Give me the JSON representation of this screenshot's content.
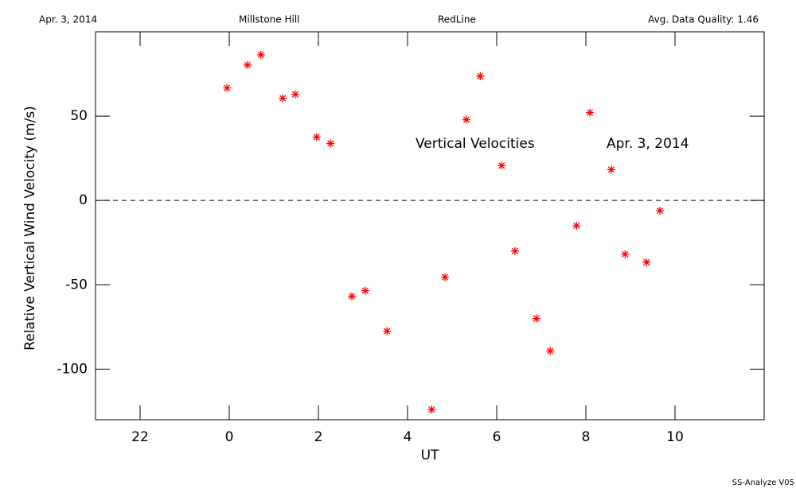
{
  "header": {
    "date": "Apr. 3, 2014",
    "site": "Millstone Hill",
    "instrument": "RedLine",
    "quality": "Avg. Data Quality: 1.46"
  },
  "footer": "SS-Analyze V05",
  "chart_data": {
    "type": "scatter",
    "annotations": [
      "Vertical Velocities",
      "Apr. 3, 2014"
    ],
    "x_label": "UT",
    "y_label": "Relative Vertical Wind Velocity (m/s)",
    "color": "#ff0000",
    "reference_line": 0,
    "xlim": [
      -3,
      12
    ],
    "ylim": [
      -130,
      100
    ],
    "xticks": [
      {
        "value": -2,
        "label": "22"
      },
      0,
      2,
      4,
      6,
      8,
      10
    ],
    "yticks": [
      -100,
      -50,
      0,
      50
    ],
    "x": [
      -0.05,
      0.41,
      0.71,
      1.2,
      1.48,
      1.96,
      2.27,
      2.75,
      3.05,
      3.54,
      4.54,
      4.84,
      5.32,
      5.63,
      6.11,
      6.41,
      6.89,
      7.2,
      7.79,
      8.09,
      8.57,
      8.88,
      9.36,
      9.66
    ],
    "values": [
      66.7,
      80.3,
      86.4,
      60.6,
      62.9,
      37.6,
      33.8,
      -56.8,
      -53.5,
      -77.5,
      -124,
      -45.5,
      47.9,
      73.7,
      20.7,
      -30,
      -70,
      -89.2,
      -15,
      52.1,
      18.3,
      -31.9,
      -36.6,
      -6.1
    ]
  }
}
